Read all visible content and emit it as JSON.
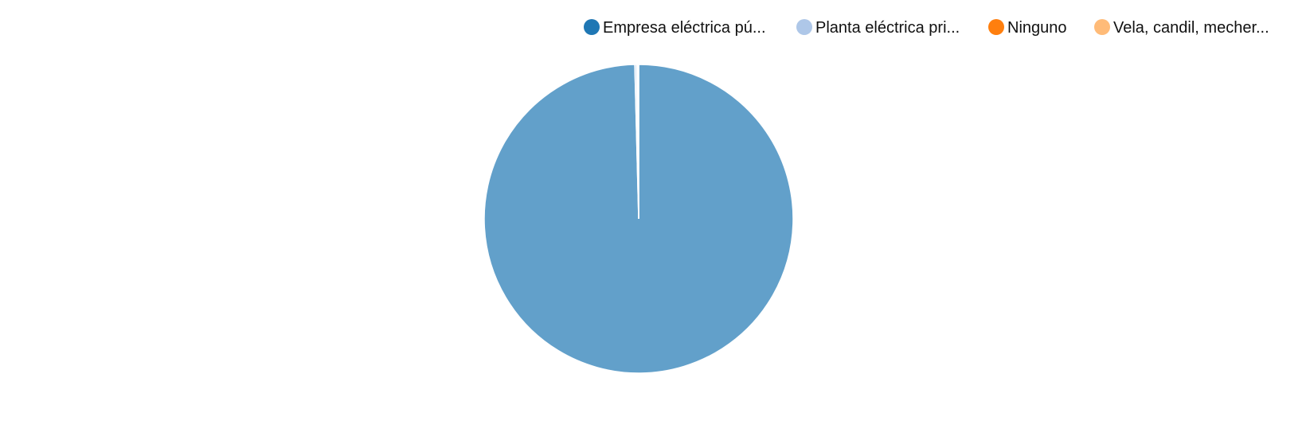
{
  "chart_data": {
    "type": "pie",
    "legend_position": "top-right",
    "slices": [
      {
        "label": "Empresa eléctrica pú...",
        "value": 99.6,
        "color": "#1f77b4"
      },
      {
        "label": "Planta eléctrica pri...",
        "value": 0.2,
        "color": "#aec7e8"
      },
      {
        "label": "Ninguno",
        "value": 0.1,
        "color": "#ff7f0e"
      },
      {
        "label": "Vela, candil, mecher...",
        "value": 0.1,
        "color": "#ffbb78"
      }
    ]
  }
}
